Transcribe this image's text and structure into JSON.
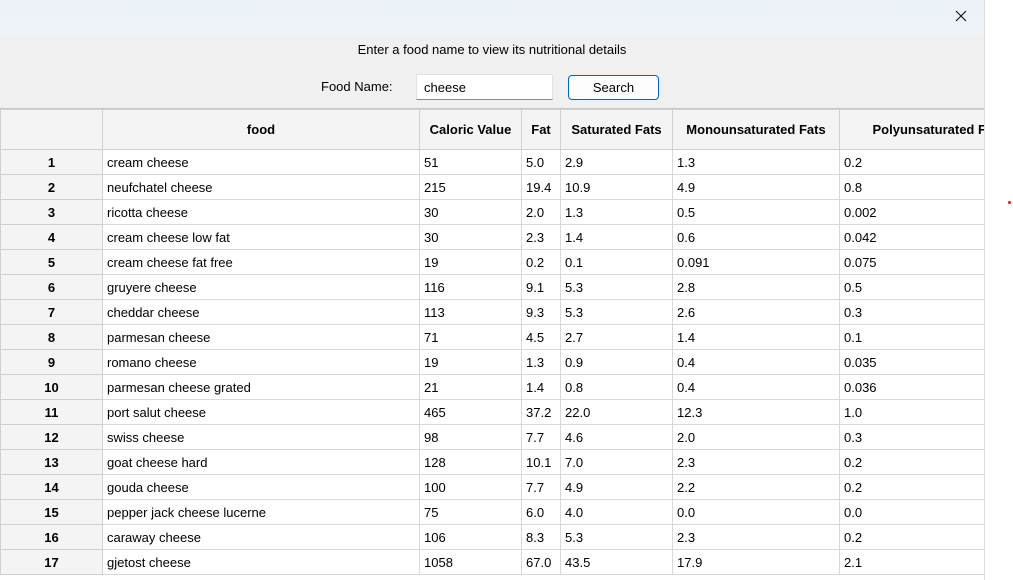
{
  "window": {
    "close_icon": "close-icon"
  },
  "instruction": "Enter a food name to view its nutritional details",
  "search": {
    "label": "Food Name:",
    "value": "cheese",
    "button": "Search"
  },
  "table": {
    "headers": [
      "",
      "food",
      "Caloric Value",
      "Fat",
      "Saturated Fats",
      "Monounsaturated Fats",
      "Polyunsaturated Fat"
    ],
    "rows": [
      [
        "1",
        "cream cheese",
        "51",
        "5.0",
        "2.9",
        "1.3",
        "0.2"
      ],
      [
        "2",
        "neufchatel cheese",
        "215",
        "19.4",
        "10.9",
        "4.9",
        "0.8"
      ],
      [
        "3",
        "ricotta cheese",
        "30",
        "2.0",
        "1.3",
        "0.5",
        "0.002"
      ],
      [
        "4",
        "cream cheese low fat",
        "30",
        "2.3",
        "1.4",
        "0.6",
        "0.042"
      ],
      [
        "5",
        "cream cheese fat free",
        "19",
        "0.2",
        "0.1",
        "0.091",
        "0.075"
      ],
      [
        "6",
        "gruyere cheese",
        "116",
        "9.1",
        "5.3",
        "2.8",
        "0.5"
      ],
      [
        "7",
        "cheddar cheese",
        "113",
        "9.3",
        "5.3",
        "2.6",
        "0.3"
      ],
      [
        "8",
        "parmesan cheese",
        "71",
        "4.5",
        "2.7",
        "1.4",
        "0.1"
      ],
      [
        "9",
        "romano cheese",
        "19",
        "1.3",
        "0.9",
        "0.4",
        "0.035"
      ],
      [
        "10",
        "parmesan cheese grated",
        "21",
        "1.4",
        "0.8",
        "0.4",
        "0.036"
      ],
      [
        "11",
        "port salut cheese",
        "465",
        "37.2",
        "22.0",
        "12.3",
        "1.0"
      ],
      [
        "12",
        "swiss cheese",
        "98",
        "7.7",
        "4.6",
        "2.0",
        "0.3"
      ],
      [
        "13",
        "goat cheese hard",
        "128",
        "10.1",
        "7.0",
        "2.3",
        "0.2"
      ],
      [
        "14",
        "gouda cheese",
        "100",
        "7.7",
        "4.9",
        "2.2",
        "0.2"
      ],
      [
        "15",
        "pepper jack cheese lucerne",
        "75",
        "6.0",
        "4.0",
        "0.0",
        "0.0"
      ],
      [
        "16",
        "caraway cheese",
        "106",
        "8.3",
        "5.3",
        "2.3",
        "0.2"
      ],
      [
        "17",
        "gjetost cheese",
        "1058",
        "67.0",
        "43.5",
        "17.9",
        "2.1"
      ]
    ]
  }
}
